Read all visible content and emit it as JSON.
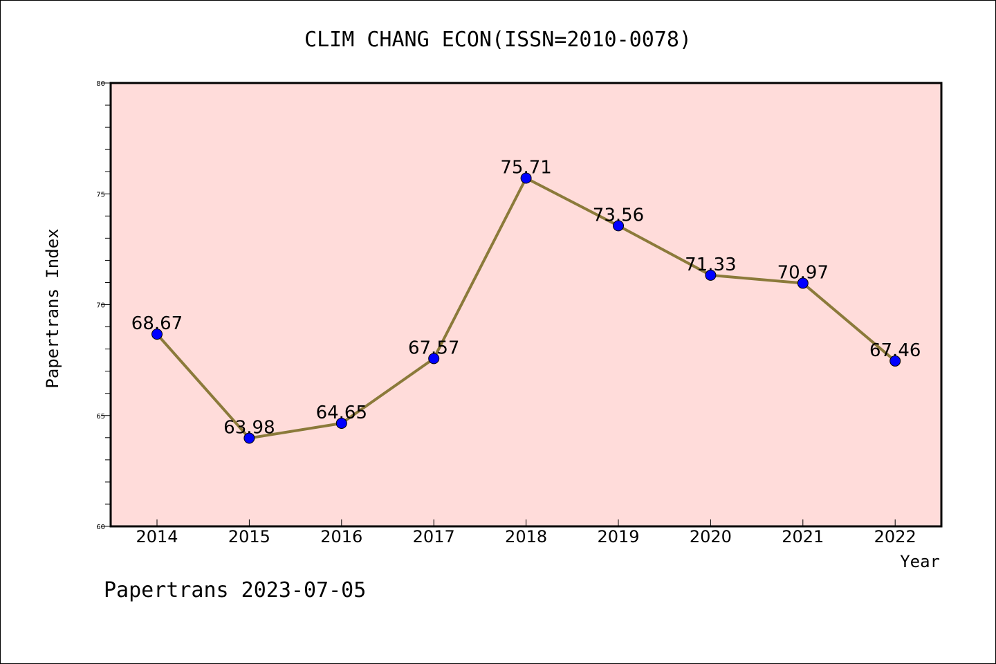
{
  "footer_text": "Papertrans 2023-07-05",
  "colors": {
    "plot_background": "#FFDCDA",
    "line": "#8B7A3A",
    "marker": "#0000FF"
  },
  "chart_data": {
    "type": "line",
    "title": "CLIM CHANG ECON(ISSN=2010-0078)",
    "xlabel": "Year",
    "ylabel": "Papertrans Index",
    "x": [
      "2014",
      "2015",
      "2016",
      "2017",
      "2018",
      "2019",
      "2020",
      "2021",
      "2022"
    ],
    "values": [
      68.67,
      63.98,
      64.65,
      67.57,
      75.71,
      73.56,
      71.33,
      70.97,
      67.46
    ],
    "data_labels": [
      "68.67",
      "63.98",
      "64.65",
      "67.57",
      "75.71",
      "73.56",
      "71.33",
      "70.97",
      "67.46"
    ],
    "ylim": [
      60,
      80
    ],
    "yticks": [
      "60",
      "65",
      "70",
      "75",
      "80"
    ],
    "grid": false,
    "legend": "none"
  }
}
